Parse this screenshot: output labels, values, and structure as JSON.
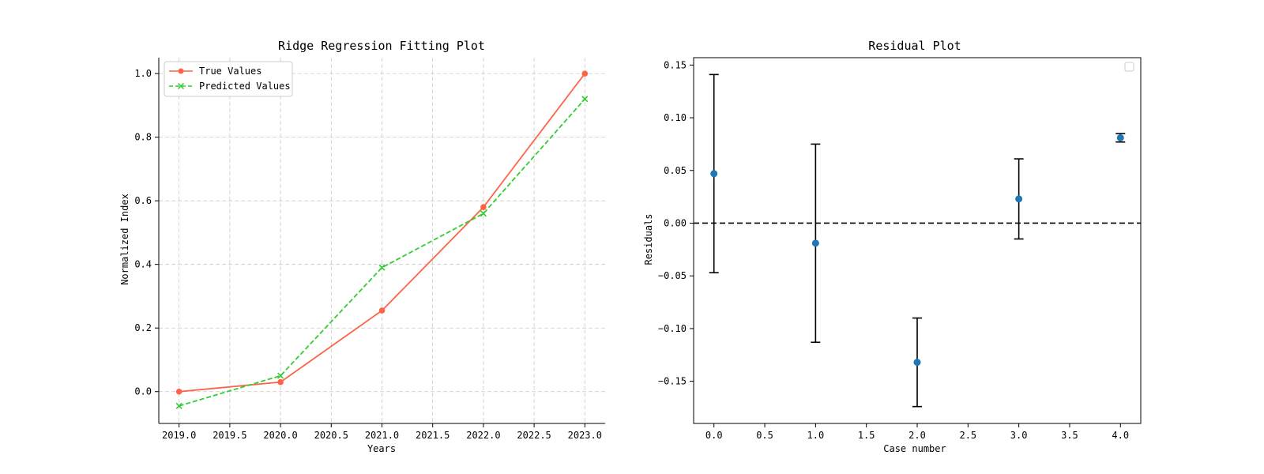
{
  "chart_data": [
    {
      "type": "line",
      "title": "Ridge Regression Fitting Plot",
      "xlabel": "Years",
      "ylabel": "Normalized Index",
      "xlim": [
        2018.8,
        2023.2
      ],
      "ylim": [
        -0.1,
        1.05
      ],
      "xticks": [
        "2019.0",
        "2020.0",
        "2020.5",
        "2021.0",
        "2021.5",
        "2022.0",
        "2022.5",
        "2023.0"
      ],
      "xtick_values": [
        2019.0,
        2020.0,
        2020.5,
        2021.0,
        2021.5,
        2022.0,
        2022.5,
        2023.0
      ],
      "xticks_extra": [
        "2019.5"
      ],
      "xtick_extra_values": [
        2019.5
      ],
      "yticks": [
        "0.0",
        "0.2",
        "0.4",
        "0.6",
        "0.8",
        "1.0"
      ],
      "ytick_values": [
        0.0,
        0.2,
        0.4,
        0.6,
        0.8,
        1.0
      ],
      "grid": true,
      "legend_position": "top-left",
      "x": [
        2019,
        2020,
        2021,
        2022,
        2023
      ],
      "series": [
        {
          "name": "True Values",
          "values": [
            0.0,
            0.03,
            0.255,
            0.58,
            1.0
          ],
          "color": "#ff6347",
          "style": "solid",
          "marker": "circle"
        },
        {
          "name": "Predicted Values",
          "values": [
            -0.045,
            0.05,
            0.39,
            0.56,
            0.92
          ],
          "color": "#32cd32",
          "style": "dashed",
          "marker": "x"
        }
      ]
    },
    {
      "type": "scatter",
      "title": "Residual Plot",
      "xlabel": "Case number",
      "ylabel": "Residuals",
      "xlim": [
        -0.2,
        4.2
      ],
      "ylim": [
        -0.19,
        0.157
      ],
      "xticks": [
        "0.0",
        "0.5",
        "1.0",
        "1.5",
        "2.0",
        "2.5",
        "3.0",
        "3.5",
        "4.0"
      ],
      "xtick_values": [
        0.0,
        0.5,
        1.0,
        1.5,
        2.0,
        2.5,
        3.0,
        3.5,
        4.0
      ],
      "yticks": [
        "0.15",
        "0.10",
        "0.05",
        "0.00",
        "−0.05",
        "−0.10",
        "−0.15"
      ],
      "ytick_values": [
        0.15,
        0.1,
        0.05,
        0.0,
        -0.05,
        -0.1,
        -0.15
      ],
      "grid": false,
      "legend_position": "top-right",
      "reference_line": 0.0,
      "x": [
        0,
        1,
        2,
        3,
        4
      ],
      "values": [
        0.047,
        -0.019,
        -0.132,
        0.023,
        0.081
      ],
      "errors": [
        0.094,
        0.094,
        0.042,
        0.038,
        0.004
      ],
      "color": "#1f77b4"
    }
  ]
}
